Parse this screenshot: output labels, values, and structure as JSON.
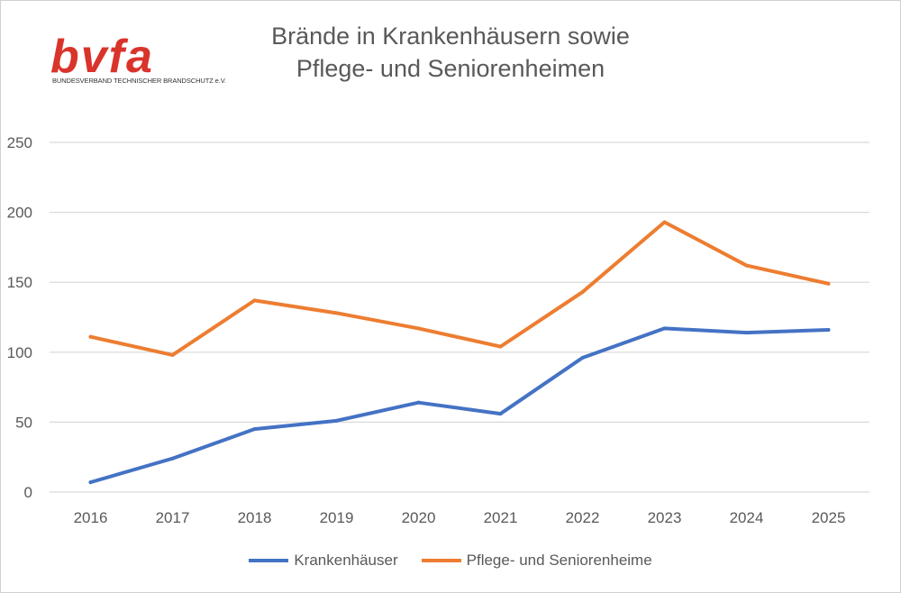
{
  "logo": {
    "text": "bvfa",
    "subtitle": "BUNDESVERBAND TECHNISCHER BRANDSCHUTZ e.V.",
    "color": "#d9342b"
  },
  "chart_data": {
    "type": "line",
    "title_line1": "Brände in Krankenhäusern sowie",
    "title_line2": "Pflege- und Seniorenheimen",
    "xlabel": "",
    "ylabel": "",
    "categories": [
      "2016",
      "2017",
      "2018",
      "2019",
      "2020",
      "2021",
      "2022",
      "2023",
      "2024",
      "2025"
    ],
    "ylim": [
      0,
      250
    ],
    "yticks": [
      0,
      50,
      100,
      150,
      200,
      250
    ],
    "grid": true,
    "legend": "bottom",
    "series": [
      {
        "name": "Krankenhäuser",
        "color": "#4472c4",
        "values": [
          7,
          24,
          45,
          51,
          64,
          56,
          96,
          117,
          114,
          116
        ]
      },
      {
        "name": "Pflege- und Seniorenheime",
        "color": "#ed7d31",
        "values": [
          111,
          98,
          137,
          128,
          117,
          104,
          143,
          193,
          162,
          149
        ]
      }
    ]
  }
}
